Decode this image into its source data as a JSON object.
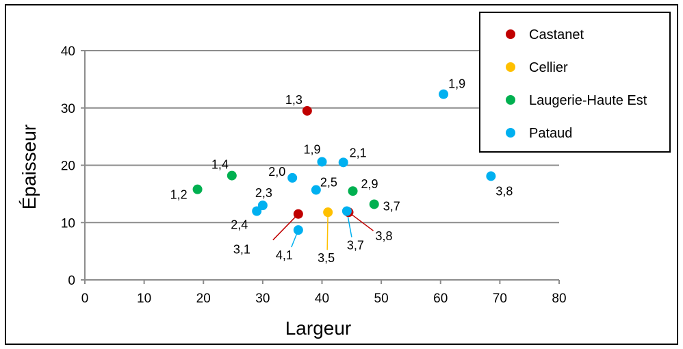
{
  "chart_data": {
    "type": "scatter",
    "xlabel": "Largeur",
    "ylabel": "Épaisseur",
    "xlim": [
      0,
      80
    ],
    "ylim": [
      0,
      40
    ],
    "x_ticks": [
      "0",
      "10",
      "20",
      "30",
      "40",
      "50",
      "60",
      "70",
      "80"
    ],
    "y_ticks": [
      "0",
      "10",
      "20",
      "30",
      "40"
    ],
    "grid": "horizontal",
    "legend_position": "top-right",
    "series": [
      {
        "name": "Castanet",
        "color": "#c00000",
        "points": [
          {
            "x": 37.5,
            "y": 29.5,
            "label": "1,3"
          },
          {
            "x": 36.0,
            "y": 11.5,
            "label": "3,1"
          },
          {
            "x": 44.5,
            "y": 11.8,
            "label": "3,8"
          }
        ]
      },
      {
        "name": "Cellier",
        "color": "#ffc000",
        "points": [
          {
            "x": 41.0,
            "y": 11.8,
            "label": "3,5"
          }
        ]
      },
      {
        "name": "Laugerie-Haute Est",
        "color": "#00b050",
        "points": [
          {
            "x": 19.0,
            "y": 15.8,
            "label": "1,2"
          },
          {
            "x": 24.8,
            "y": 18.2,
            "label": "1,4"
          },
          {
            "x": 45.2,
            "y": 15.5,
            "label": "2,9"
          },
          {
            "x": 48.8,
            "y": 13.2,
            "label": "3,7"
          }
        ]
      },
      {
        "name": "Pataud",
        "color": "#00b0f0",
        "points": [
          {
            "x": 60.5,
            "y": 32.4,
            "label": "1,9"
          },
          {
            "x": 40.0,
            "y": 20.6,
            "label": "1,9"
          },
          {
            "x": 43.6,
            "y": 20.5,
            "label": "2,1"
          },
          {
            "x": 35.0,
            "y": 17.8,
            "label": "2,0"
          },
          {
            "x": 39.0,
            "y": 15.7,
            "label": "2,5"
          },
          {
            "x": 30.0,
            "y": 13.0,
            "label": "2,3"
          },
          {
            "x": 29.0,
            "y": 12.0,
            "label": "2,4"
          },
          {
            "x": 36.0,
            "y": 8.7,
            "label": "4,1"
          },
          {
            "x": 44.2,
            "y": 12.0,
            "label": "3,7"
          },
          {
            "x": 68.5,
            "y": 18.1,
            "label": "3,8"
          }
        ]
      }
    ]
  }
}
